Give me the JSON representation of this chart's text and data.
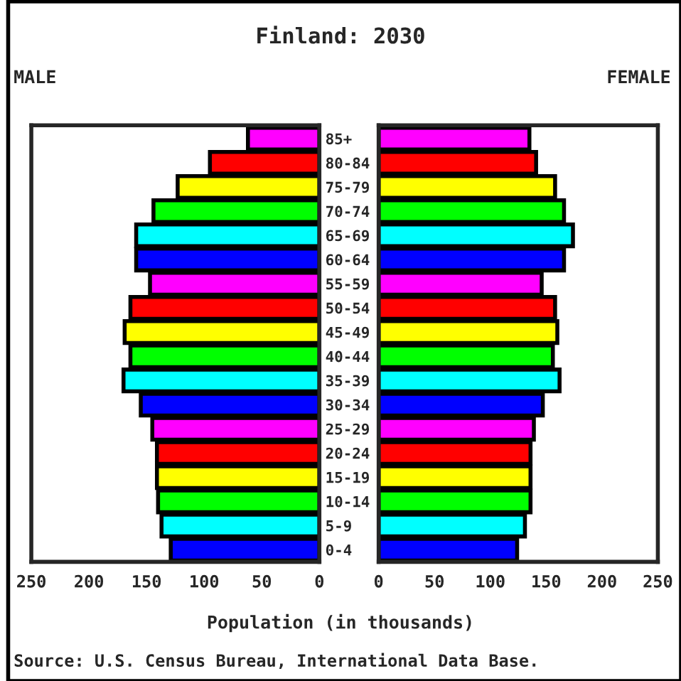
{
  "chart_data": [
    {
      "type": "bar",
      "orientation": "horizontal",
      "title": "Finland: 2030",
      "xlabel": "Population (in thousands)",
      "annotations": [
        "Source: U.S. Census Bureau, International Data Base."
      ],
      "categories": [
        "85+",
        "80-84",
        "75-79",
        "70-74",
        "65-69",
        "60-64",
        "55-59",
        "50-54",
        "45-49",
        "40-44",
        "35-39",
        "30-34",
        "25-29",
        "20-24",
        "15-19",
        "10-14",
        "5-9",
        "0-4"
      ],
      "series": [
        {
          "name": "MALE",
          "colors": [
            "#ff00ff",
            "#ff0000",
            "#ffff00",
            "#00ff00",
            "#00ffff",
            "#0000ff",
            "#ff00ff",
            "#ff0000",
            "#ffff00",
            "#00ff00",
            "#00ffff",
            "#0000ff",
            "#ff00ff",
            "#ff0000",
            "#ffff00",
            "#00ff00",
            "#00ffff",
            "#0000ff"
          ],
          "values": [
            62,
            95,
            123,
            144,
            159,
            159,
            147,
            164,
            169,
            164,
            170,
            155,
            145,
            141,
            141,
            140,
            137,
            129
          ]
        }
      ],
      "xlim": [
        250,
        0
      ],
      "xticks": [
        250,
        200,
        150,
        100,
        50,
        0
      ]
    },
    {
      "type": "bar",
      "orientation": "horizontal",
      "series": [
        {
          "name": "FEMALE",
          "colors": [
            "#ff00ff",
            "#ff0000",
            "#ffff00",
            "#00ff00",
            "#00ffff",
            "#0000ff",
            "#ff00ff",
            "#ff0000",
            "#ffff00",
            "#00ff00",
            "#00ffff",
            "#0000ff",
            "#ff00ff",
            "#ff0000",
            "#ffff00",
            "#00ff00",
            "#00ffff",
            "#0000ff"
          ],
          "values": [
            135,
            141,
            158,
            166,
            174,
            166,
            146,
            158,
            160,
            156,
            162,
            147,
            139,
            136,
            136,
            136,
            131,
            124
          ]
        }
      ],
      "xlim": [
        0,
        250
      ],
      "xticks": [
        0,
        50,
        100,
        150,
        200,
        250
      ],
      "tick_labels": "x"
    }
  ]
}
